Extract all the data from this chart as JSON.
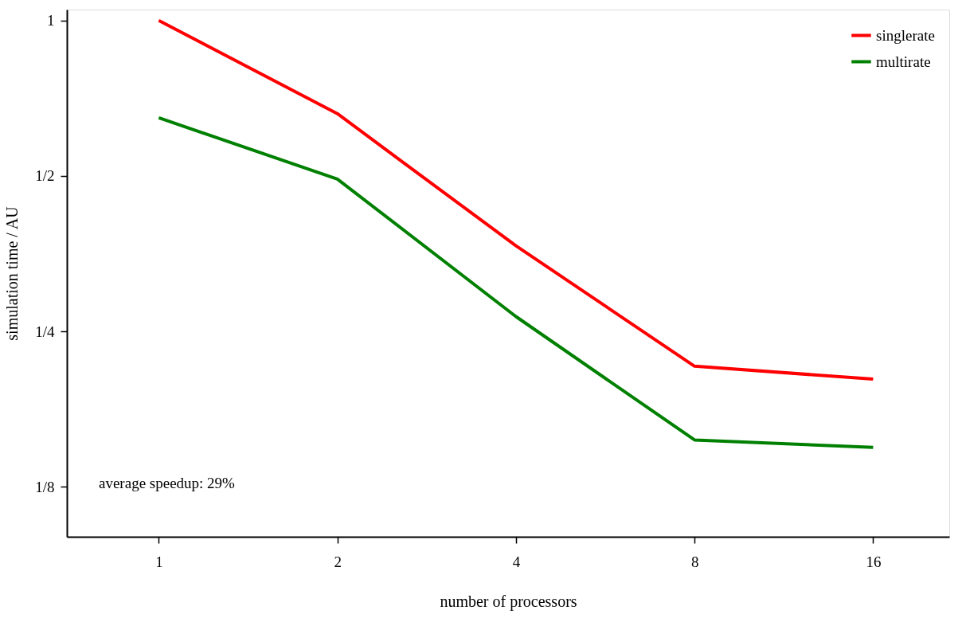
{
  "chart_data": {
    "type": "line",
    "xlabel": "number of processors",
    "ylabel": "simulation time / AU",
    "x": [
      1,
      2,
      4,
      8,
      16
    ],
    "series": [
      {
        "name": "singlerate",
        "color": "#ff0000",
        "values": [
          1.0,
          0.66,
          0.366,
          0.214,
          0.202
        ]
      },
      {
        "name": "multirate",
        "color": "#008000",
        "values": [
          0.648,
          0.493,
          0.267,
          0.154,
          0.149
        ]
      }
    ],
    "log": "xy",
    "xlim": [
      0.7,
      21.5
    ],
    "ylim": [
      0.1,
      1.05
    ],
    "xticks": [
      1,
      2,
      4,
      8,
      16
    ],
    "yticks": [
      {
        "value": 1,
        "label": "1"
      },
      {
        "value": 0.5,
        "label": "1/2"
      },
      {
        "value": 0.25,
        "label": "1/4"
      },
      {
        "value": 0.125,
        "label": "1/8"
      }
    ],
    "grid": false,
    "legend": "top right",
    "marker": "none",
    "line_style": "solid",
    "annotations": [
      "average speedup: 29%"
    ]
  }
}
